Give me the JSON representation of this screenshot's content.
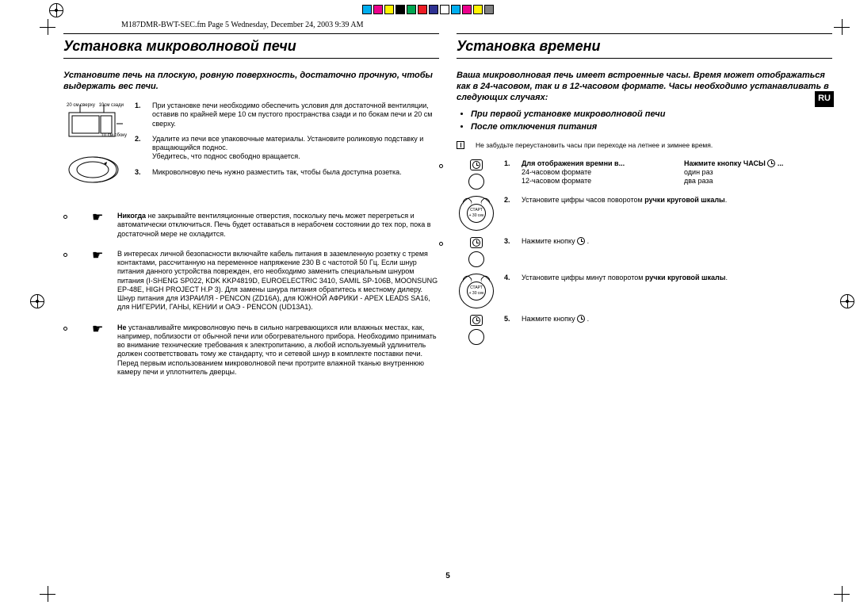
{
  "meta": {
    "running_header": "M187DMR-BWT-SEC.fm  Page 5  Wednesday, December 24, 2003  9:39 AM",
    "page_number": "5",
    "lang_tab": "RU"
  },
  "colorbar": [
    "#00aeef",
    "#ec008c",
    "#fff200",
    "#000000",
    "#00a651",
    "#ed1c24",
    "#2e3192",
    "#ffffff",
    "#00aeef",
    "#ec008c",
    "#fff200",
    "#808080"
  ],
  "left": {
    "heading": "Установка микроволновой печи",
    "intro": "Установите печь на плоскую, ровную поверхность, достаточно прочную, чтобы выдержать вес печи.",
    "diagram_labels": {
      "top": "20 см сверху",
      "side": "10см сзади",
      "right": "10 см сбоку"
    },
    "steps": [
      "При установке печи необходимо обеспечить условия для достаточной вентиляции, оставив по крайней мере 10 см пустого пространства сзади и по бокам печи и 20 см сверху.",
      "Удалите из печи все упаковочные материалы. Установите роликовую подставку и вращающийся поднос.\nУбедитесь, что поднос свободно вращается.",
      "Микроволновую печь нужно разместить так, чтобы была доступна розетка."
    ],
    "warnings": [
      {
        "bold": "Никогда",
        "text": " не закрывайте вентиляционные отверстия, поскольку печь может перегреться и автоматически отключиться. Печь будет оставаться в нерабочем состоянии до тех пор, пока в достаточной мере не охладится."
      },
      {
        "bold": "",
        "text": "В интересах личной безопасности включайте кабель питания в заземленную розетку с тремя контактами, рассчитанную на переменное напряжение 230 В с частотой 50 Гц. Если шнур питания данного устройства поврежден, его необходимо заменить специальным шнуром питания (I-SHENG SP022, KDK KKP4819D, EUROELECTRIC 3410, SAMIL SP-106B, MOONSUNG EP-48E, HIGH PROJECT H.P 3). Для замены шнура питания обратитесь к местному дилеру. Шнур питания для ИЗРАИЛЯ - PENCON (ZD16A), для ЮЖНОЙ АФРИКИ - APEX LEADS SA16, для НИГЕРИИ, ГАНЫ, КЕНИИ и ОАЭ - PENCON (UD13A1)."
      },
      {
        "bold": "Не",
        "text": " устанавливайте микроволновую печь в сильно нагревающихся или влажных местах, как, например, поблизости от обычной печи или обогревательного прибора. Необходимо принимать во внимание технические требования к электропитанию, а любой используемый удлинитель должен соответствовать тому же стандарту, что и сетевой шнур в комплекте поставки печи. Перед первым использованием микроволновой печи протрите влажной тканью внутреннюю камеру печи и уплотнитель дверцы."
      }
    ]
  },
  "right": {
    "heading": "Установка времени",
    "intro": "Ваша микроволновая печь имеет встроенные часы. Время может отображаться как в 24-часовом, так и в 12-часовом формате. Часы необходимо устанавливать в следующих случаях:",
    "bullets": [
      "При первой установке микроволновой печи",
      "После отключения питания"
    ],
    "note": "Не забудьте переустановить часы при переходе на летнее и зимнее время.",
    "dial_labels": {
      "start": "СТАРТ",
      "sec": "+ 30 сек"
    },
    "steps": {
      "s1": {
        "c1h": "Для отображения времни в...",
        "c2h": "Нажмите кнопку ЧАСЫ",
        "r1a": "24-часовом формате",
        "r1b": "один раз",
        "r2a": "12-часовом формате",
        "r2b": "два раза"
      },
      "s2": {
        "pre": "Установите цифры часов поворотом ",
        "b": "ручки круговой шкалы",
        "post": "."
      },
      "s3": "Нажмите кнопку ",
      "s4": {
        "pre": "Установите цифры минут поворотом ",
        "b": "ручки круговой шкалы",
        "post": "."
      },
      "s5": "Нажмите кнопку "
    }
  }
}
